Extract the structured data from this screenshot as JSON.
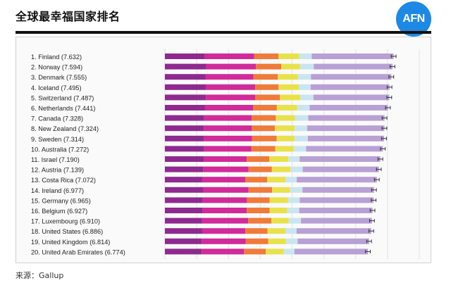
{
  "header": {
    "title": "全球最幸福国家排名",
    "logo_text": "AFN"
  },
  "footer": {
    "source": "来源：Gallup"
  },
  "colors": {
    "segments": [
      "#8e2a8f",
      "#d12a9a",
      "#e8e24a",
      "#c9e6f0",
      "#b8a0d4"
    ],
    "logo": "#1e88e5"
  },
  "chart_data": {
    "type": "bar",
    "orientation": "horizontal",
    "stacked": true,
    "categories": [
      "1.   Finland (7.632)",
      "2.   Norway (7.594)",
      "3.   Denmark (7.555)",
      "4.   Iceland (7.495)",
      "5.   Switzerland (7.487)",
      "6.   Netherlands (7.441)",
      "7.   Canada (7.328)",
      "8.   New Zealand (7.324)",
      "9.   Sweden (7.314)",
      "10. Australia (7.272)",
      "11.  Israel (7.190)",
      "12.  Austria (7.139)",
      "13.  Costa Rica (7.072)",
      "14.  Ireland (6.977)",
      "15.  Germany (6.965)",
      "16.  Belgium (6.927)",
      "17.  Luxembourg (6.910)",
      "18.  United States (6.886)",
      "19.  United Kingdom (6.814)",
      "20. United Arab Emirates (6.774)"
    ],
    "totals": [
      7.632,
      7.594,
      7.555,
      7.495,
      7.487,
      7.441,
      7.328,
      7.324,
      7.314,
      7.272,
      7.19,
      7.139,
      7.072,
      6.977,
      6.965,
      6.927,
      6.91,
      6.886,
      6.814,
      6.774
    ],
    "segment_fractions": [
      [
        0.175,
        0.215,
        0.107,
        0.091,
        0.054,
        0.358
      ],
      [
        0.181,
        0.219,
        0.111,
        0.082,
        0.061,
        0.346
      ],
      [
        0.179,
        0.212,
        0.108,
        0.088,
        0.058,
        0.355
      ],
      [
        0.182,
        0.22,
        0.104,
        0.09,
        0.053,
        0.351
      ],
      [
        0.183,
        0.219,
        0.111,
        0.09,
        0.059,
        0.338
      ],
      [
        0.18,
        0.216,
        0.106,
        0.091,
        0.056,
        0.351
      ],
      [
        0.179,
        0.216,
        0.11,
        0.087,
        0.061,
        0.347
      ],
      [
        0.177,
        0.218,
        0.106,
        0.09,
        0.057,
        0.352
      ],
      [
        0.178,
        0.22,
        0.112,
        0.082,
        0.06,
        0.348
      ],
      [
        0.18,
        0.216,
        0.11,
        0.085,
        0.057,
        0.352
      ],
      [
        0.18,
        0.2,
        0.105,
        0.088,
        0.052,
        0.375
      ],
      [
        0.179,
        0.212,
        0.109,
        0.087,
        0.057,
        0.356
      ],
      [
        0.176,
        0.203,
        0.104,
        0.087,
        0.052,
        0.378
      ],
      [
        0.182,
        0.218,
        0.113,
        0.085,
        0.06,
        0.342
      ],
      [
        0.181,
        0.212,
        0.109,
        0.088,
        0.056,
        0.354
      ],
      [
        0.18,
        0.214,
        0.11,
        0.086,
        0.057,
        0.353
      ],
      [
        0.18,
        0.222,
        0.112,
        0.084,
        0.059,
        0.343
      ],
      [
        0.181,
        0.209,
        0.107,
        0.088,
        0.053,
        0.362
      ],
      [
        0.18,
        0.216,
        0.11,
        0.087,
        0.057,
        0.35
      ],
      [
        0.181,
        0.209,
        0.107,
        0.088,
        0.053,
        0.362
      ]
    ],
    "error_bar_half_width": 0.08,
    "xlim": [
      0,
      8.7
    ],
    "grid": true,
    "legend": "none"
  }
}
